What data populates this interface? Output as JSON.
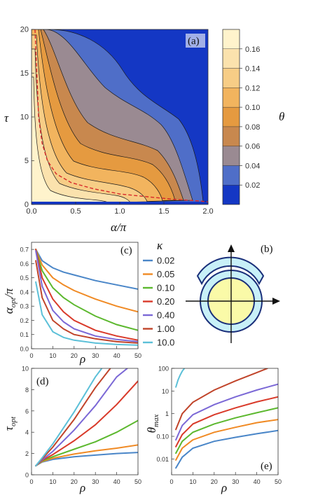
{
  "chart_data": [
    {
      "panel": "a",
      "type": "heatmap",
      "panel_label": "(a)",
      "xlabel": "α/π",
      "ylabel": "τ",
      "xlim": [
        0,
        2.0
      ],
      "ylim": [
        0,
        20
      ],
      "x_ticks": [
        "0.0",
        "0.5",
        "1.0",
        "1.5",
        "2.0"
      ],
      "y_ticks": [
        "0",
        "5",
        "10",
        "15",
        "20"
      ],
      "colorbar_label": "θ",
      "colorbar_ticks": [
        "0.02",
        "0.04",
        "0.06",
        "0.08",
        "0.10",
        "0.12",
        "0.14",
        "0.16"
      ],
      "colorbar_range": [
        0.0,
        0.18
      ],
      "contour_levels": [
        0.02,
        0.04,
        0.06,
        0.08,
        0.1,
        0.12,
        0.14,
        0.16
      ],
      "colors": [
        "#1437c4",
        "#4f6ec8",
        "#9a8a92",
        "#c8884e",
        "#e59a40",
        "#f2b45e",
        "#f7cd86",
        "#fbe2ad",
        "#fff3cc"
      ],
      "series": [
        {
          "name": "optimal α (dashed)",
          "x": [
            0.04,
            0.06,
            0.08,
            0.12,
            0.18,
            0.28,
            0.45,
            0.7,
            1.0,
            1.3,
            1.6,
            1.9,
            2.0
          ],
          "y": [
            20,
            15,
            10,
            7,
            5,
            3.5,
            2.5,
            1.8,
            1.2,
            0.9,
            0.6,
            0.4,
            0.3
          ]
        }
      ]
    },
    {
      "panel": "c",
      "type": "line",
      "panel_label": "(c)",
      "xlabel": "ρ",
      "ylabel": "α_opt/π",
      "xlim": [
        0,
        50
      ],
      "ylim": [
        0,
        0.75
      ],
      "x_ticks": [
        "0",
        "10",
        "20",
        "30",
        "40",
        "50"
      ],
      "y_ticks": [
        "0.0",
        "0.1",
        "0.2",
        "0.3",
        "0.4",
        "0.5",
        "0.6",
        "0.7"
      ],
      "legend_title": "κ",
      "series": [
        {
          "name": "0.02",
          "color": "#4a86c8",
          "x": [
            2,
            5,
            10,
            15,
            20,
            30,
            40,
            50
          ],
          "y": [
            0.7,
            0.62,
            0.57,
            0.54,
            0.52,
            0.48,
            0.45,
            0.42
          ]
        },
        {
          "name": "0.05",
          "color": "#f08a24",
          "x": [
            2,
            5,
            10,
            15,
            20,
            30,
            40,
            50
          ],
          "y": [
            0.7,
            0.59,
            0.5,
            0.45,
            0.41,
            0.35,
            0.3,
            0.26
          ]
        },
        {
          "name": "0.10",
          "color": "#5cb82e",
          "x": [
            2,
            5,
            10,
            15,
            20,
            30,
            40,
            50
          ],
          "y": [
            0.7,
            0.55,
            0.43,
            0.36,
            0.31,
            0.23,
            0.17,
            0.13
          ]
        },
        {
          "name": "0.20",
          "color": "#d93a2a",
          "x": [
            2,
            5,
            10,
            15,
            20,
            30,
            40,
            50
          ],
          "y": [
            0.7,
            0.5,
            0.35,
            0.26,
            0.2,
            0.13,
            0.09,
            0.06
          ]
        },
        {
          "name": "0.40",
          "color": "#7b68d6",
          "x": [
            2,
            5,
            10,
            15,
            20,
            30,
            40,
            50
          ],
          "y": [
            0.69,
            0.44,
            0.27,
            0.19,
            0.14,
            0.09,
            0.065,
            0.05
          ]
        },
        {
          "name": "1.00",
          "color": "#c0442a",
          "x": [
            2,
            5,
            10,
            15,
            20,
            30,
            40,
            50
          ],
          "y": [
            0.62,
            0.36,
            0.2,
            0.14,
            0.1,
            0.07,
            0.05,
            0.04
          ]
        },
        {
          "name": "10.0",
          "color": "#5cc0d8",
          "x": [
            2,
            5,
            10,
            15,
            20,
            30,
            40,
            50
          ],
          "y": [
            0.47,
            0.24,
            0.12,
            0.08,
            0.06,
            0.04,
            0.03,
            0.025
          ]
        }
      ]
    },
    {
      "panel": "b",
      "type": "diagram",
      "panel_label": "(b)"
    },
    {
      "panel": "d",
      "type": "line",
      "panel_label": "(d)",
      "xlabel": "ρ",
      "ylabel": "τ_opt",
      "xlim": [
        0,
        50
      ],
      "ylim": [
        0,
        10
      ],
      "x_ticks": [
        "0",
        "10",
        "20",
        "30",
        "40",
        "50"
      ],
      "y_ticks": [
        "0",
        "2",
        "4",
        "6",
        "8",
        "10"
      ],
      "series": [
        {
          "name": "0.02",
          "color": "#4a86c8",
          "x": [
            2,
            5,
            10,
            20,
            30,
            40,
            50
          ],
          "y": [
            0.85,
            1.2,
            1.45,
            1.7,
            1.85,
            2.0,
            2.1
          ]
        },
        {
          "name": "0.05",
          "color": "#f08a24",
          "x": [
            2,
            5,
            10,
            20,
            30,
            40,
            50
          ],
          "y": [
            0.85,
            1.25,
            1.55,
            1.95,
            2.25,
            2.5,
            2.8
          ]
        },
        {
          "name": "0.10",
          "color": "#5cb82e",
          "x": [
            2,
            5,
            10,
            20,
            30,
            40,
            50
          ],
          "y": [
            0.85,
            1.3,
            1.7,
            2.4,
            3.1,
            4.0,
            5.1
          ]
        },
        {
          "name": "0.20",
          "color": "#d93a2a",
          "x": [
            2,
            5,
            10,
            20,
            30,
            40,
            50
          ],
          "y": [
            0.85,
            1.35,
            1.9,
            3.2,
            4.7,
            6.6,
            8.8
          ]
        },
        {
          "name": "0.40",
          "color": "#7b68d6",
          "x": [
            2,
            5,
            10,
            20,
            30,
            40,
            45
          ],
          "y": [
            0.85,
            1.4,
            2.2,
            4.2,
            6.5,
            9.2,
            10
          ]
        },
        {
          "name": "1.00",
          "color": "#c0442a",
          "x": [
            2,
            5,
            10,
            20,
            30,
            37
          ],
          "y": [
            0.85,
            1.5,
            2.6,
            5.2,
            8.2,
            10
          ]
        },
        {
          "name": "10.0",
          "color": "#5cc0d8",
          "x": [
            2,
            5,
            10,
            20,
            30,
            33
          ],
          "y": [
            0.85,
            1.6,
            2.9,
            5.9,
            9.2,
            10
          ]
        }
      ]
    },
    {
      "panel": "e",
      "type": "line",
      "panel_label": "(e)",
      "xlabel": "ρ",
      "ylabel": "θ_max",
      "xscale": "linear",
      "yscale": "log",
      "xlim": [
        0,
        50
      ],
      "ylim": [
        0.002,
        100
      ],
      "x_ticks": [
        "0",
        "10",
        "20",
        "30",
        "40",
        "50"
      ],
      "y_ticks": [
        "0.01",
        "0.10",
        "1",
        "10",
        "100"
      ],
      "series": [
        {
          "name": "0.02",
          "color": "#4a86c8",
          "x": [
            2,
            5,
            10,
            20,
            30,
            40,
            50
          ],
          "y": [
            0.004,
            0.012,
            0.03,
            0.06,
            0.09,
            0.13,
            0.18
          ]
        },
        {
          "name": "0.05",
          "color": "#f08a24",
          "x": [
            2,
            5,
            10,
            20,
            30,
            40,
            50
          ],
          "y": [
            0.009,
            0.03,
            0.07,
            0.15,
            0.25,
            0.4,
            0.55
          ]
        },
        {
          "name": "0.10",
          "color": "#5cb82e",
          "x": [
            2,
            5,
            10,
            20,
            30,
            40,
            50
          ],
          "y": [
            0.018,
            0.06,
            0.15,
            0.35,
            0.65,
            1.1,
            1.8
          ]
        },
        {
          "name": "0.20",
          "color": "#d93a2a",
          "x": [
            2,
            5,
            10,
            20,
            30,
            40,
            50
          ],
          "y": [
            0.035,
            0.12,
            0.35,
            0.9,
            1.8,
            3.3,
            5.5
          ]
        },
        {
          "name": "0.40",
          "color": "#7b68d6",
          "x": [
            2,
            5,
            10,
            20,
            30,
            40,
            50
          ],
          "y": [
            0.07,
            0.3,
            0.9,
            2.5,
            5.5,
            11,
            20
          ]
        },
        {
          "name": "1.00",
          "color": "#c0442a",
          "x": [
            2,
            5,
            10,
            20,
            30,
            40,
            45
          ],
          "y": [
            0.2,
            1.0,
            3.2,
            11,
            28,
            65,
            100
          ]
        },
        {
          "name": "10.0",
          "color": "#5cc0d8",
          "x": [
            2,
            3,
            4,
            5,
            6
          ],
          "y": [
            15,
            30,
            50,
            75,
            100
          ]
        }
      ]
    }
  ]
}
